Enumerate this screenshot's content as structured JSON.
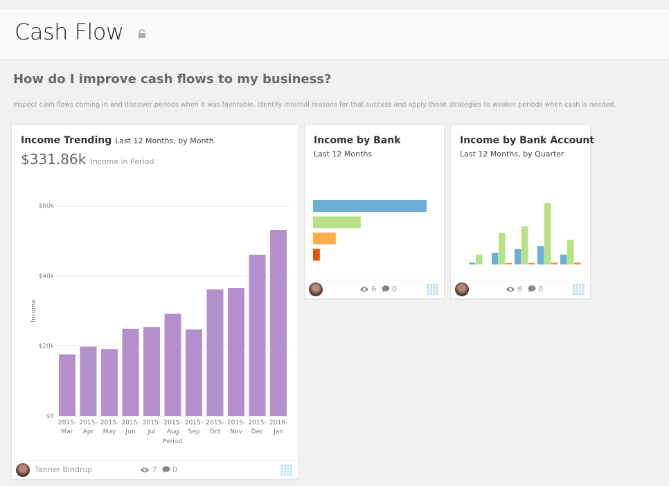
{
  "header": {
    "title": "Cash Flow",
    "lock_icon": "unlocked-padlock-icon"
  },
  "question": "How do I improve cash flows to my business?",
  "description": "Inspect cash flows coming in and discover periods when it was favorable.  Identify internal reasons for that success and apply those strategies to weaker periods when cash is needed.",
  "cards": [
    {
      "title": "Income Trending",
      "subtitle": "Last 12 Months, by Month",
      "kpi_value": "$331.86k",
      "kpi_label": "Income in Period",
      "footer": {
        "author": "Tanner Bindrup",
        "views": "7",
        "comments": "0"
      }
    },
    {
      "title": "Income by Bank",
      "subtitle": "Last 12 Months",
      "footer": {
        "views": "6",
        "comments": "0"
      }
    },
    {
      "title": "Income by Bank Account",
      "subtitle": "Last 12 Months, by Quarter",
      "footer": {
        "views": "6",
        "comments": "0"
      }
    }
  ],
  "chart_data": [
    {
      "type": "bar",
      "xlabel": "Period",
      "ylabel": "Income",
      "ylim": [
        0,
        60000
      ],
      "grid": true,
      "yticks": [
        {
          "v": 0,
          "label": "$0"
        },
        {
          "v": 20000,
          "label": "$20k"
        },
        {
          "v": 40000,
          "label": "$40k"
        },
        {
          "v": 60000,
          "label": "$60k"
        }
      ],
      "categories": [
        [
          "2015-",
          "Mar"
        ],
        [
          "2015-",
          "Apr"
        ],
        [
          "2015-",
          "May"
        ],
        [
          "2015-",
          "Jun"
        ],
        [
          "2015-",
          "Jul"
        ],
        [
          "2015-",
          "Aug"
        ],
        [
          "2015-",
          "Sep"
        ],
        [
          "2015-",
          "Oct"
        ],
        [
          "2015-",
          "Nov"
        ],
        [
          "2015-",
          "Dec"
        ],
        [
          "2016-",
          "Jan"
        ]
      ],
      "values": [
        17600,
        19800,
        19100,
        24900,
        25400,
        29200,
        24700,
        36100,
        36500,
        46000,
        53100
      ],
      "color": "#b48fcb"
    },
    {
      "type": "bar",
      "orientation": "horizontal",
      "values": [
        1.0,
        0.42,
        0.2,
        0.06
      ],
      "colors": [
        "#6baed6",
        "#b5e384",
        "#fdae4b",
        "#e6550d"
      ]
    },
    {
      "type": "bar",
      "series": [
        {
          "values": [
            0.03,
            0.19,
            0.25,
            0.3,
            0.16
          ],
          "color": "#6baed6"
        },
        {
          "values": [
            0.16,
            0.51,
            0.62,
            1.0,
            0.4
          ],
          "color": "#b5e384"
        },
        {
          "values": [
            0,
            0.01,
            0.02,
            0.03,
            0.03
          ],
          "color": "#fd8d3c"
        }
      ]
    }
  ]
}
